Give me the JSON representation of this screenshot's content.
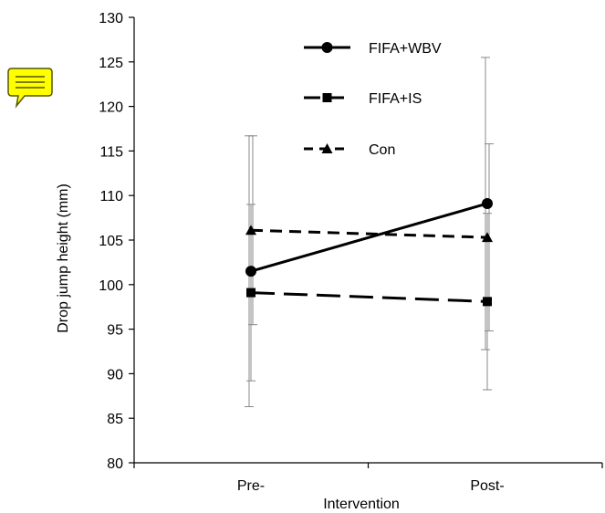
{
  "chart_data": {
    "type": "line",
    "title": "",
    "xlabel": "Intervention",
    "ylabel": "Drop jump height (mm)",
    "categories": [
      "Pre-",
      "Post-"
    ],
    "ylim": [
      80,
      130
    ],
    "yticks": [
      80,
      85,
      90,
      95,
      100,
      105,
      110,
      115,
      120,
      125,
      130
    ],
    "grid": false,
    "legend_position": "top-center",
    "series": [
      {
        "name": "FIFA+WBV",
        "values": [
          101.5,
          109.1
        ],
        "error_low": [
          86.3,
          92.7
        ],
        "error_high": [
          116.7,
          125.5
        ],
        "marker": "circle",
        "line_style": "solid",
        "color": "#000000"
      },
      {
        "name": "FIFA+IS",
        "values": [
          99.1,
          98.1
        ],
        "error_low": [
          89.2,
          88.2
        ],
        "error_high": [
          109.0,
          108.0
        ],
        "marker": "square",
        "line_style": "long-dash",
        "color": "#000000"
      },
      {
        "name": "Con",
        "values": [
          106.1,
          105.3
        ],
        "error_low": [
          95.5,
          94.8
        ],
        "error_high": [
          116.7,
          115.8
        ],
        "marker": "triangle",
        "line_style": "short-dash",
        "color": "#000000"
      }
    ]
  },
  "annotation": {
    "icon": "comment-icon",
    "color": "#ffff00"
  }
}
